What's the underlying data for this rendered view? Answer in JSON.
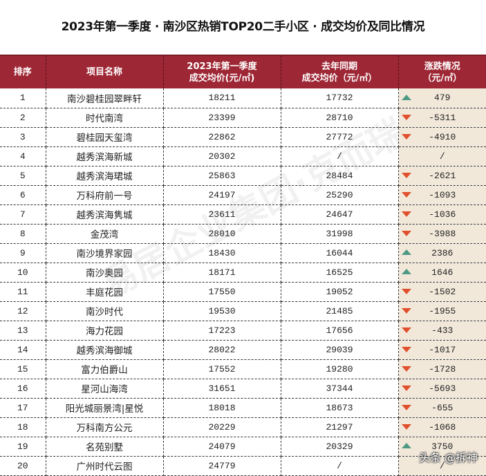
{
  "title": "2023年第一季度 · 南沙区热销TOP20二手小区 · 成交均价及同比情况",
  "headers": {
    "rank": "排序",
    "name": "项目名称",
    "current_line1": "2023年第一季度",
    "current_line2": "成交均价(元/㎡)",
    "last_line1": "去年同期",
    "last_line2": "成交均价（元/㎡）",
    "change_line1": "涨跌情况",
    "change_line2": "（元/㎡）"
  },
  "colors": {
    "header_bg": "#9e2735",
    "change_col_bg": "#f2e8da",
    "up_arrow": "#4e9a84",
    "down_arrow": "#e0502c"
  },
  "rows": [
    {
      "rank": "1",
      "name": "南沙碧桂园翠畔轩",
      "current": "18211",
      "last": "17732",
      "dir": "up",
      "change": "479"
    },
    {
      "rank": "2",
      "name": "时代南湾",
      "current": "23399",
      "last": "28710",
      "dir": "down",
      "change": "-5311"
    },
    {
      "rank": "3",
      "name": "碧桂园天玺湾",
      "current": "22862",
      "last": "27772",
      "dir": "down",
      "change": "-4910"
    },
    {
      "rank": "4",
      "name": "越秀滨海新城",
      "current": "20302",
      "last": "/",
      "dir": "none",
      "change": "/"
    },
    {
      "rank": "5",
      "name": "越秀滨海珺城",
      "current": "25863",
      "last": "28484",
      "dir": "down",
      "change": "-2621"
    },
    {
      "rank": "6",
      "name": "万科府前一号",
      "current": "24197",
      "last": "25290",
      "dir": "down",
      "change": "-1093"
    },
    {
      "rank": "7",
      "name": "越秀滨海隽城",
      "current": "23611",
      "last": "24647",
      "dir": "down",
      "change": "-1036"
    },
    {
      "rank": "8",
      "name": "金茂湾",
      "current": "28010",
      "last": "31998",
      "dir": "down",
      "change": "-3988"
    },
    {
      "rank": "9",
      "name": "南沙境界家园",
      "current": "18430",
      "last": "16044",
      "dir": "up",
      "change": "2386"
    },
    {
      "rank": "10",
      "name": "南沙奥园",
      "current": "18171",
      "last": "16525",
      "dir": "up",
      "change": "1646"
    },
    {
      "rank": "11",
      "name": "丰庭花园",
      "current": "17550",
      "last": "19052",
      "dir": "down",
      "change": "-1502"
    },
    {
      "rank": "12",
      "name": "南沙时代",
      "current": "19530",
      "last": "21485",
      "dir": "down",
      "change": "-1955"
    },
    {
      "rank": "13",
      "name": "海力花园",
      "current": "17223",
      "last": "17656",
      "dir": "down",
      "change": "-433"
    },
    {
      "rank": "14",
      "name": "越秀滨海御城",
      "current": "28022",
      "last": "29039",
      "dir": "down",
      "change": "-1017"
    },
    {
      "rank": "15",
      "name": "富力伯爵山",
      "current": "17552",
      "last": "19280",
      "dir": "down",
      "change": "-1728"
    },
    {
      "rank": "16",
      "name": "星河山海湾",
      "current": "31651",
      "last": "37344",
      "dir": "down",
      "change": "-5693"
    },
    {
      "rank": "17",
      "name": "阳光城丽景湾|星悦",
      "current": "18018",
      "last": "18673",
      "dir": "down",
      "change": "-655"
    },
    {
      "rank": "18",
      "name": "万科南方公元",
      "current": "20229",
      "last": "21297",
      "dir": "down",
      "change": "-1068"
    },
    {
      "rank": "19",
      "name": "名苑别墅",
      "current": "24079",
      "last": "20329",
      "dir": "up",
      "change": "3750"
    },
    {
      "rank": "20",
      "name": "广州时代云图",
      "current": "24779",
      "last": "/",
      "dir": "none",
      "change": "/"
    }
  ],
  "watermark": "易居企业集团·克而瑞",
  "credit": "头条 @拆神"
}
